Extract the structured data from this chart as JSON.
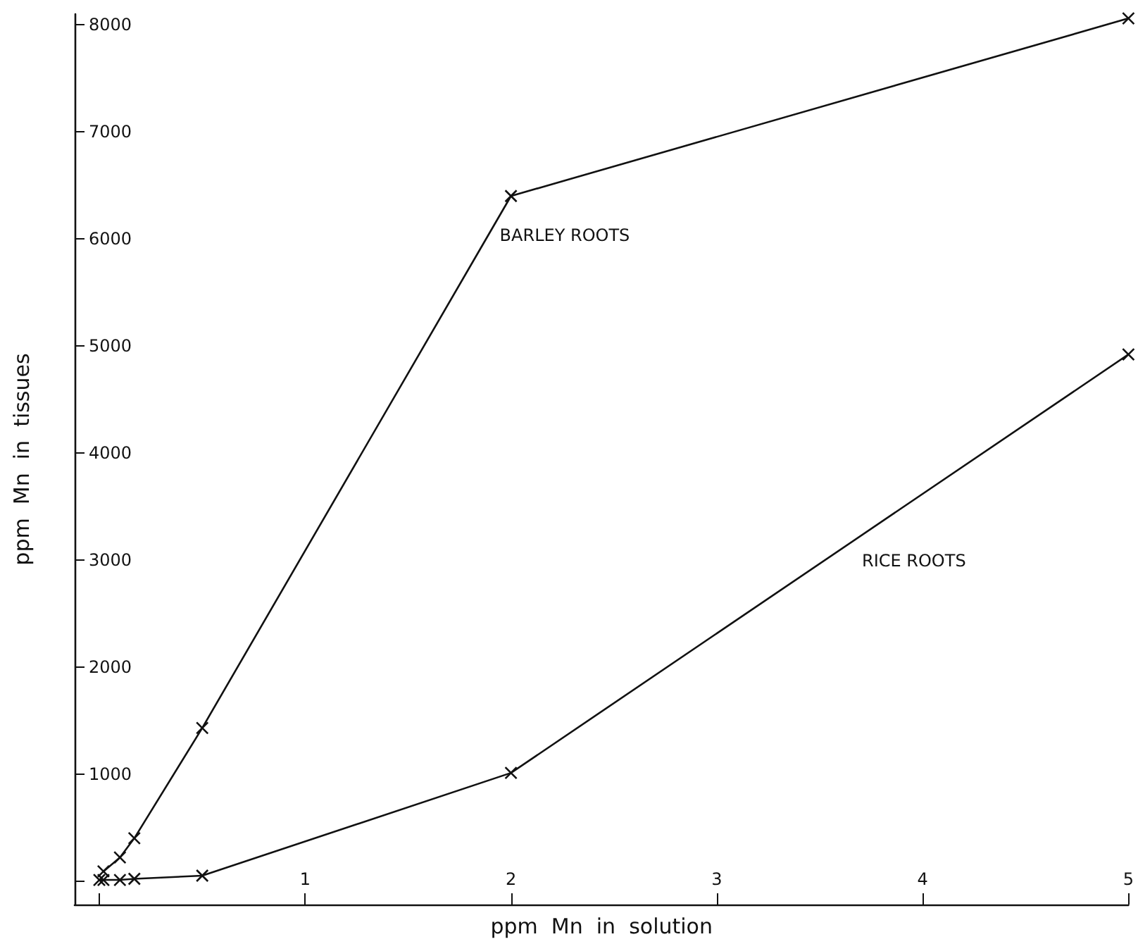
{
  "chart_data": {
    "type": "line",
    "xlabel": "ppm  Mn  in  solution",
    "ylabel": "ppm  Mn  in  tissues",
    "xlim": [
      -0.12,
      5
    ],
    "xticks": [
      {
        "value": 0,
        "label": null
      },
      1,
      2,
      3,
      4,
      5
    ],
    "ylim": [
      -220,
      8100
    ],
    "yticks": [
      {
        "value": 0,
        "label": null
      },
      1000,
      2000,
      3000,
      4000,
      5000,
      6000,
      7000,
      8000
    ],
    "grid": false,
    "legend": false,
    "marker": "cross",
    "line_style": "solid",
    "series": [
      {
        "name": "BARLEY ROOTS",
        "color": "#111111",
        "x": [
          0.02,
          0.1,
          0.17,
          0.5,
          2,
          5
        ],
        "values": [
          90,
          220,
          400,
          1430,
          6400,
          8060
        ]
      },
      {
        "name": "RICE ROOTS",
        "color": "#111111",
        "x": [
          0,
          0.02,
          0.1,
          0.17,
          0.5,
          2,
          5
        ],
        "values": [
          10,
          10,
          10,
          20,
          50,
          1010,
          4920
        ]
      }
    ]
  }
}
